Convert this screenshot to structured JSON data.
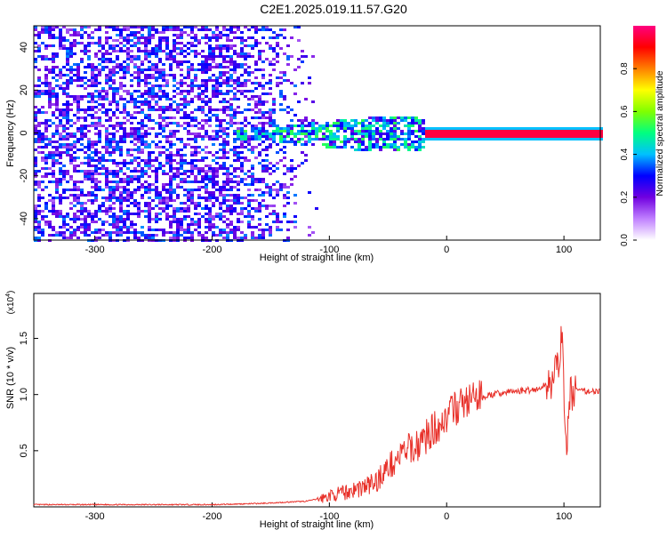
{
  "title": "C2E1.2025.019.11.57.G20",
  "colors": {
    "snr_line": "#e8312a",
    "frame": "#000000"
  },
  "chart_data": [
    {
      "type": "heatmap",
      "xlabel": "Height of straight line (km)",
      "ylabel": "Frequency (Hz)",
      "xlim": [
        -352,
        131
      ],
      "ylim": [
        -50,
        50
      ],
      "x_ticks": [
        -300,
        -200,
        -100,
        0,
        100
      ],
      "y_ticks": [
        -40,
        -20,
        0,
        20,
        40
      ],
      "colorbar": {
        "label": "Normalized spectral amplitude",
        "range": [
          0,
          1
        ],
        "ticks": [
          0.0,
          0.2,
          0.4,
          0.6,
          0.8
        ],
        "tick_labels": [
          "0.0",
          "0.2",
          "0.4",
          "0.6",
          "0.8"
        ],
        "colors": [
          "#ffffff",
          "#c080ff",
          "#7000e0",
          "#0000ff",
          "#00c0ff",
          "#00ff80",
          "#80ff00",
          "#ffff00",
          "#ff8000",
          "#ff0000",
          "#ff0080"
        ]
      },
      "features": {
        "noise_region_x": [
          -352,
          -110
        ],
        "noise_amplitude": 0.25,
        "carrier_frequency": 0,
        "carrier_onset_x": -185,
        "carrier_strong_from_x": -20,
        "carrier_amplitude_strong": 0.95
      }
    },
    {
      "type": "line",
      "xlabel": "Height of straight line (km)",
      "ylabel": "SNR (10 * v/v)",
      "yscale_label": "(x10",
      "yscale_exp": "4",
      "xlim": [
        -352,
        131
      ],
      "ylim": [
        0.0,
        1.9
      ],
      "x_ticks": [
        -300,
        -200,
        -100,
        0,
        100
      ],
      "y_ticks": [
        0.5,
        1.0,
        1.5
      ],
      "y_tick_labels": [
        "0.5",
        "1.0",
        "1.5"
      ],
      "series": [
        {
          "x": [
            -352,
            -300,
            -250,
            -200,
            -160,
            -140,
            -120,
            -105,
            -100,
            -90,
            -80,
            -70,
            -60,
            -55,
            -50,
            -45,
            -40,
            -35,
            -30,
            -25,
            -20,
            -15,
            -10,
            -5,
            0,
            5,
            10,
            20,
            30,
            40,
            50,
            60,
            70,
            80,
            85,
            90,
            95,
            98,
            100,
            102,
            105,
            110,
            115,
            120,
            131
          ],
          "y": [
            0.02,
            0.02,
            0.02,
            0.02,
            0.03,
            0.04,
            0.05,
            0.08,
            0.1,
            0.12,
            0.15,
            0.18,
            0.22,
            0.3,
            0.35,
            0.4,
            0.45,
            0.5,
            0.52,
            0.55,
            0.6,
            0.65,
            0.7,
            0.75,
            0.8,
            0.85,
            0.9,
            0.95,
            0.98,
            1.0,
            1.02,
            1.03,
            1.04,
            1.05,
            1.1,
            1.15,
            1.2,
            1.6,
            1.05,
            0.4,
            1.0,
            1.05,
            1.03,
            1.03,
            1.03
          ]
        }
      ]
    }
  ]
}
